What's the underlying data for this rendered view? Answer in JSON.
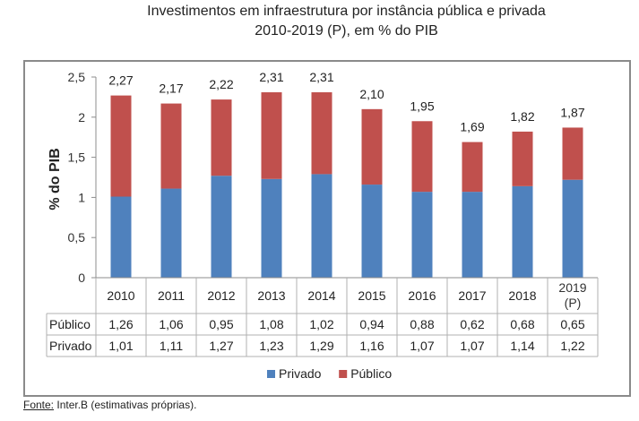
{
  "title_lines": [
    "Investimentos em infraestrutura por instância pública e privada",
    "2010-2019 (P), em % do PIB"
  ],
  "footer": {
    "label": "Fonte:",
    "text": " Inter.B (estimativas próprias)."
  },
  "colors": {
    "privado": "#4f81bd",
    "publico": "#c0504d"
  },
  "chart_data": {
    "type": "bar",
    "stacked": true,
    "title": "Investimentos em infraestrutura por instância pública e privada 2010-2019 (P), em % do PIB",
    "xlabel": "",
    "ylabel": "% do PIB",
    "ylim": [
      0,
      2.5
    ],
    "yticks": [
      "0",
      "0,5",
      "1",
      "1,5",
      "2",
      "2,5"
    ],
    "ytick_values": [
      0,
      0.5,
      1,
      1.5,
      2,
      2.5
    ],
    "grid": false,
    "categories": [
      "2010",
      "2011",
      "2012",
      "2013",
      "2014",
      "2015",
      "2016",
      "2017",
      "2018",
      "2019 (P)"
    ],
    "category_lines": [
      [
        "2010"
      ],
      [
        "2011"
      ],
      [
        "2012"
      ],
      [
        "2013"
      ],
      [
        "2014"
      ],
      [
        "2015"
      ],
      [
        "2016"
      ],
      [
        "2017"
      ],
      [
        "2018"
      ],
      [
        "2019",
        "(P)"
      ]
    ],
    "series": [
      {
        "name": "Privado",
        "values": [
          1.01,
          1.11,
          1.27,
          1.23,
          1.29,
          1.16,
          1.07,
          1.07,
          1.14,
          1.22
        ],
        "labels": [
          "1,01",
          "1,11",
          "1,27",
          "1,23",
          "1,29",
          "1,16",
          "1,07",
          "1,07",
          "1,14",
          "1,22"
        ]
      },
      {
        "name": "Público",
        "values": [
          1.26,
          1.06,
          0.95,
          1.08,
          1.02,
          0.94,
          0.88,
          0.62,
          0.68,
          0.65
        ],
        "labels": [
          "1,26",
          "1,06",
          "0,95",
          "1,08",
          "1,02",
          "0,94",
          "0,88",
          "0,62",
          "0,68",
          "0,65"
        ]
      }
    ],
    "totals": [
      2.27,
      2.17,
      2.22,
      2.31,
      2.31,
      2.1,
      1.95,
      1.69,
      1.82,
      1.87
    ],
    "total_labels": [
      "2,27",
      "2,17",
      "2,22",
      "2,31",
      "2,31",
      "2,10",
      "1,95",
      "1,69",
      "1,82",
      "1,87"
    ],
    "data_table": {
      "rows": [
        {
          "label": "Público",
          "series": "Público"
        },
        {
          "label": "Privado",
          "series": "Privado"
        }
      ]
    },
    "legend": {
      "position": "bottom",
      "entries": [
        "Privado",
        "Público"
      ]
    }
  }
}
